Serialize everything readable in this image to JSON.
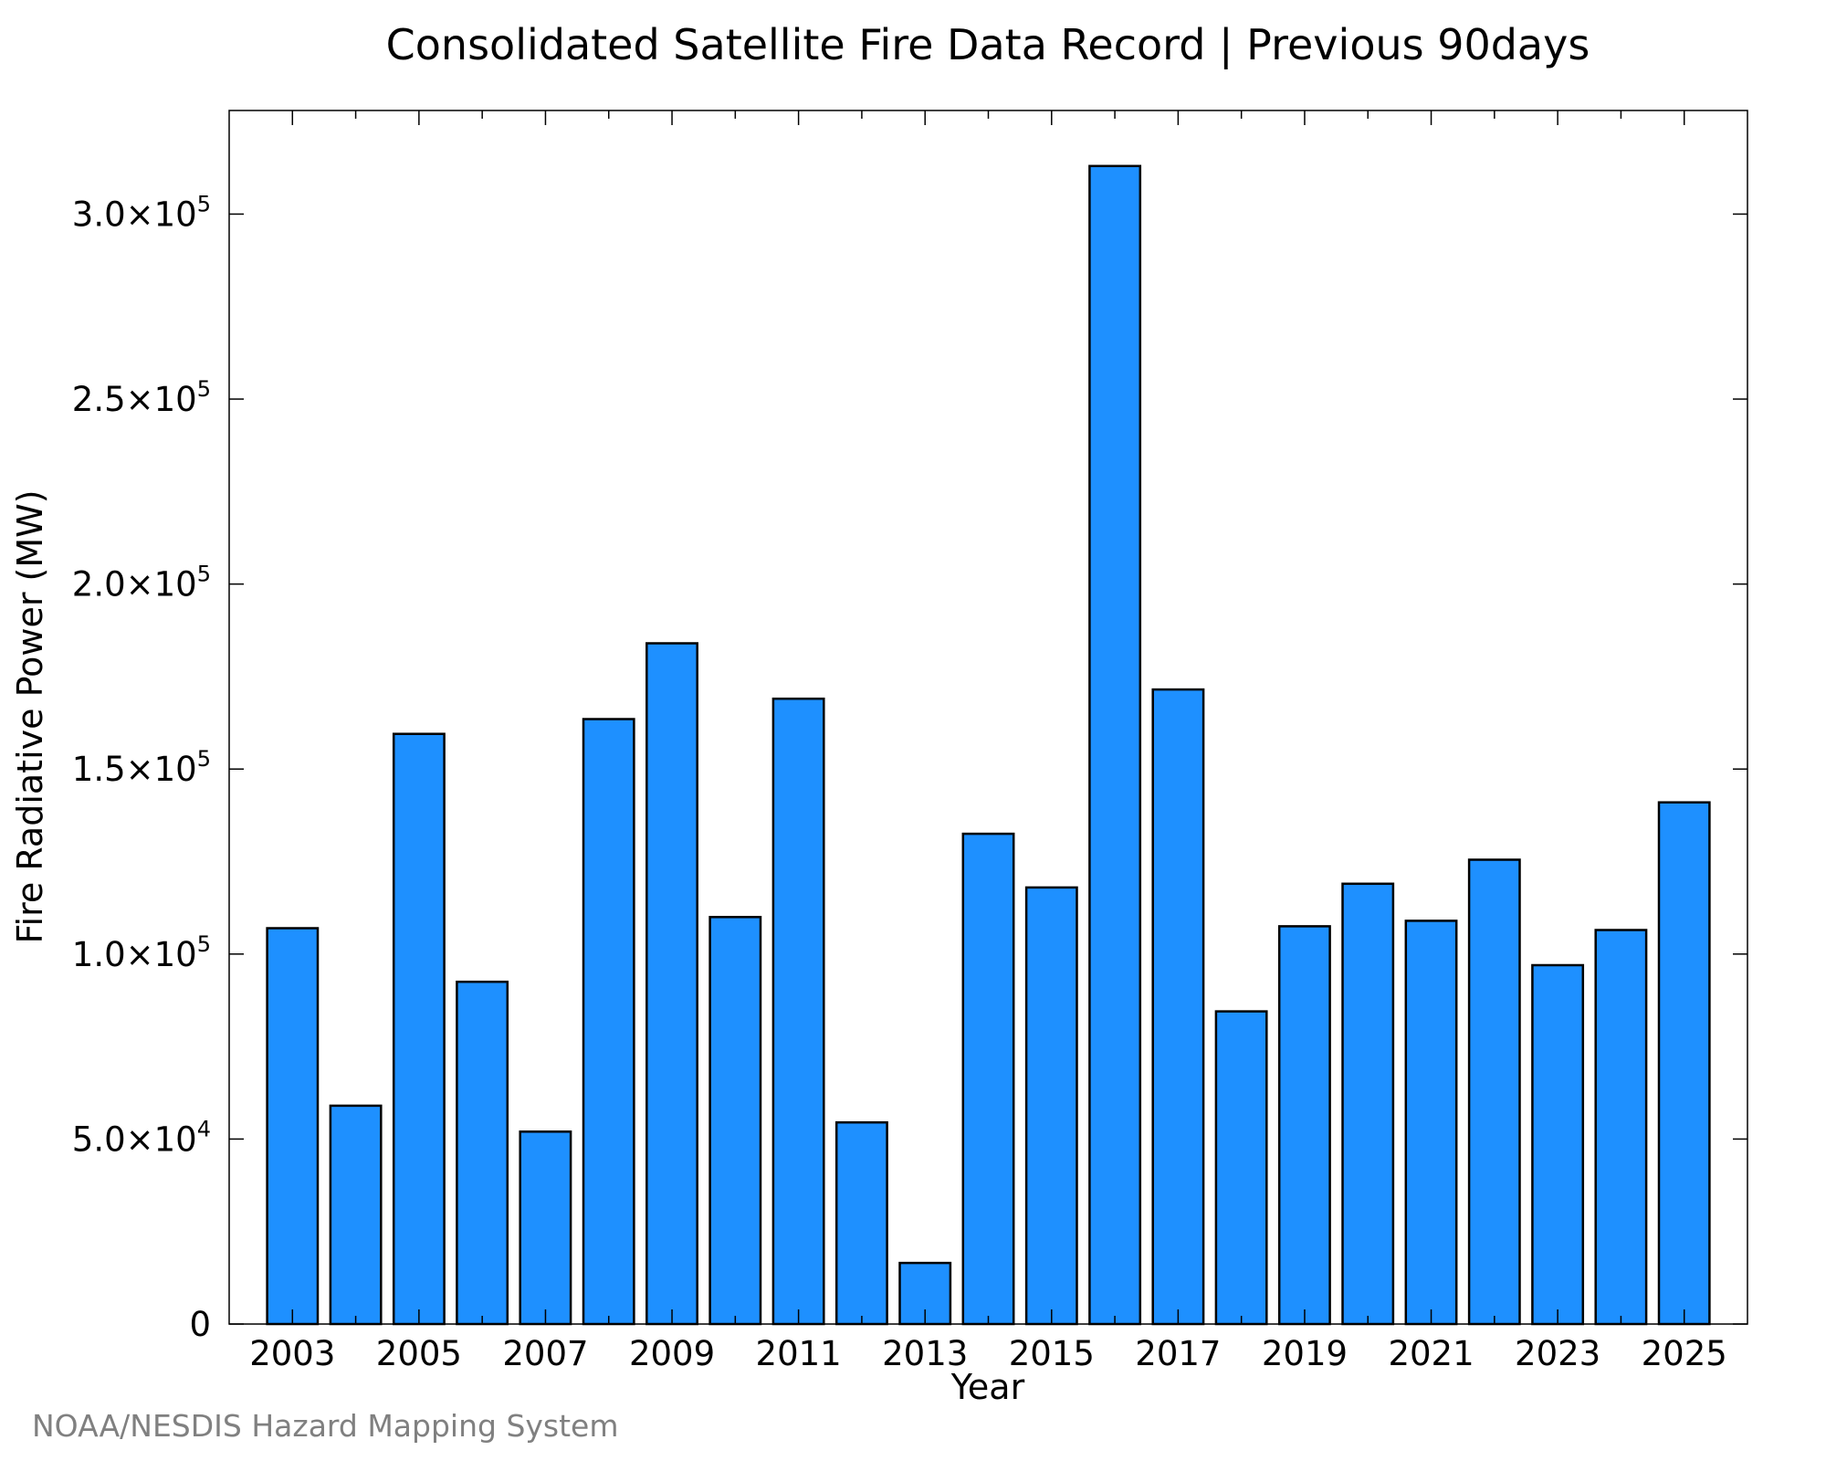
{
  "chart_data": {
    "type": "bar",
    "title": "Consolidated Satellite Fire Data Record | Previous 90days",
    "xlabel": "Year",
    "ylabel": "Fire Radiative Power (MW)",
    "categories": [
      "2003",
      "2004",
      "2005",
      "2006",
      "2007",
      "2008",
      "2009",
      "2010",
      "2011",
      "2012",
      "2013",
      "2014",
      "2015",
      "2016",
      "2017",
      "2018",
      "2019",
      "2020",
      "2021",
      "2022",
      "2023",
      "2024",
      "2025"
    ],
    "values": [
      107000,
      59000,
      159500,
      92500,
      52000,
      163500,
      184000,
      110000,
      169000,
      54500,
      16500,
      132500,
      118000,
      313000,
      171500,
      84500,
      107500,
      119000,
      109000,
      125500,
      97000,
      106500,
      141000
    ],
    "xlim": [
      2002,
      2026
    ],
    "ylim": [
      0,
      328000
    ],
    "x_ticks": [
      2003,
      2005,
      2007,
      2009,
      2011,
      2013,
      2015,
      2017,
      2019,
      2021,
      2023,
      2025
    ],
    "x_minor_ticks": [
      2004,
      2006,
      2008,
      2010,
      2012,
      2014,
      2016,
      2018,
      2020,
      2022,
      2024
    ],
    "y_ticks": [
      {
        "value": 0,
        "mantissa": "0",
        "exponent": ""
      },
      {
        "value": 50000,
        "mantissa": "5.0×10",
        "exponent": "4"
      },
      {
        "value": 100000,
        "mantissa": "1.0×10",
        "exponent": "5"
      },
      {
        "value": 150000,
        "mantissa": "1.5×10",
        "exponent": "5"
      },
      {
        "value": 200000,
        "mantissa": "2.0×10",
        "exponent": "5"
      },
      {
        "value": 250000,
        "mantissa": "2.5×10",
        "exponent": "5"
      },
      {
        "value": 300000,
        "mantissa": "3.0×10",
        "exponent": "5"
      }
    ],
    "grid": false,
    "bar_color": "#1e90ff",
    "bar_edge_color": "#000000",
    "axis_color": "#000000",
    "credit": "NOAA/NESDIS Hazard Mapping System",
    "credit_color": "#808080"
  }
}
